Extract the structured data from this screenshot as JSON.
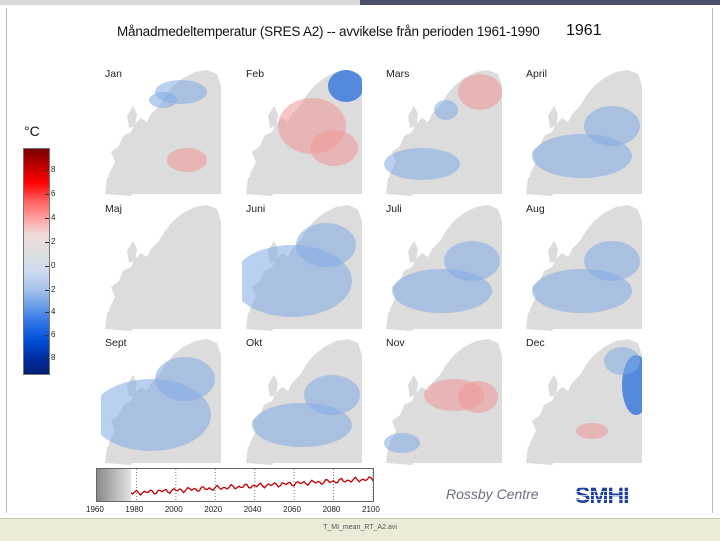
{
  "title": "Månadmedeltemperatur (SRES A2) -- avvikelse från perioden 1961-1990",
  "year": "1961",
  "unit": "°C",
  "colorbar": {
    "ticks": [
      "8",
      "6",
      "4",
      "2",
      "0",
      "2",
      "4",
      "6",
      "8"
    ],
    "colors": [
      "#780000",
      "#c40000",
      "#ff0000",
      "#ff5f5f",
      "#ffa3a3",
      "#f0dada",
      "#dedede",
      "#cfdcf0",
      "#a8c4ec",
      "#6fa2e8",
      "#2f74e6",
      "#0050d8",
      "#0030a8",
      "#001f73"
    ]
  },
  "months": [
    {
      "label": "Jan",
      "anomaly": "mixed-cold-north"
    },
    {
      "label": "Feb",
      "anomaly": "warm-center-cold-northeast"
    },
    {
      "label": "Mars",
      "anomaly": "mixed"
    },
    {
      "label": "April",
      "anomaly": "slightly-cold"
    },
    {
      "label": "Maj",
      "anomaly": "neutral"
    },
    {
      "label": "Juni",
      "anomaly": "cold"
    },
    {
      "label": "Juli",
      "anomaly": "slightly-cold"
    },
    {
      "label": "Aug",
      "anomaly": "slightly-cold"
    },
    {
      "label": "Sept",
      "anomaly": "cold"
    },
    {
      "label": "Okt",
      "anomaly": "slightly-cold"
    },
    {
      "label": "Nov",
      "anomaly": "warm-center"
    },
    {
      "label": "Dec",
      "anomaly": "cold-east"
    }
  ],
  "timeline": {
    "axis_labels": [
      "1960",
      "1980",
      "2000",
      "2020",
      "2040",
      "2060",
      "2080",
      "2100"
    ],
    "start_year": 1960,
    "end_year": 2100,
    "current_year": 1961,
    "series_color": "#c00000"
  },
  "branding": {
    "rossby": "Rossby Centre",
    "smhi": "SMHI"
  },
  "footer": "T_MI_mean_RT_A2.avi"
}
